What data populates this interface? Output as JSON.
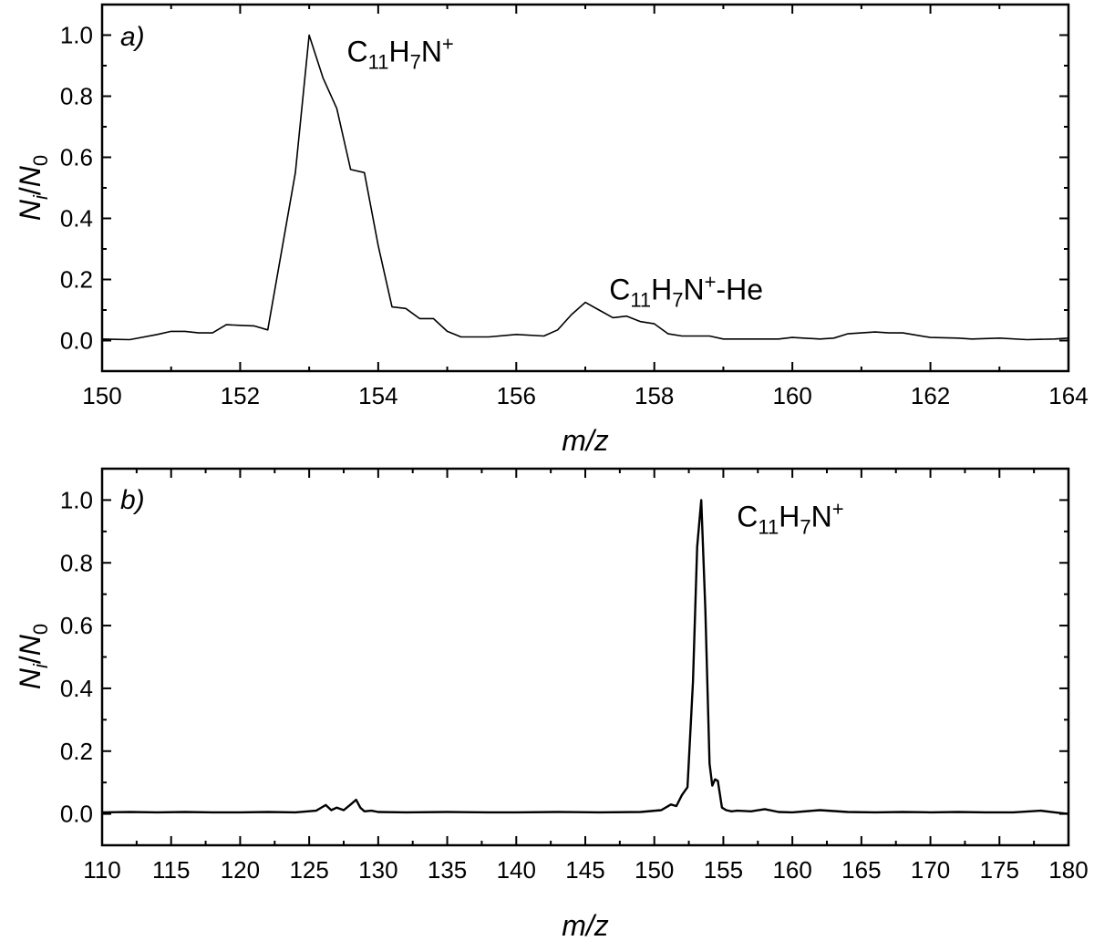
{
  "chart_data": [
    {
      "type": "line",
      "panel_label": "a)",
      "xlabel": "m/z",
      "ylabel": {
        "base": "N",
        "sub_i": "i",
        "slash": "/",
        "base2": "N",
        "sub_0": "0"
      },
      "xlim": [
        150,
        164
      ],
      "ylim": [
        -0.1,
        1.1
      ],
      "xticks": [
        "150",
        "152",
        "154",
        "156",
        "158",
        "160",
        "162",
        "164"
      ],
      "yticks": [
        "0.0",
        "0.2",
        "0.4",
        "0.6",
        "0.8",
        "1.0"
      ],
      "series": [
        {
          "x": [
            150.0,
            150.4,
            150.8,
            151.0,
            151.2,
            151.4,
            151.6,
            151.8,
            152.0,
            152.2,
            152.4,
            152.8,
            153.0,
            153.2,
            153.4,
            153.6,
            153.8,
            154.0,
            154.2,
            154.4,
            154.6,
            154.8,
            155.0,
            155.2,
            155.6,
            156.0,
            156.4,
            156.6,
            156.8,
            157.0,
            157.2,
            157.4,
            157.6,
            157.8,
            158.0,
            158.2,
            158.4,
            158.8,
            159.0,
            159.4,
            159.8,
            160.0,
            160.4,
            160.6,
            160.8,
            161.2,
            161.4,
            161.6,
            162.0,
            162.4,
            162.6,
            163.0,
            163.4,
            163.8,
            164.0
          ],
          "y": [
            0.005,
            0.003,
            0.02,
            0.03,
            0.03,
            0.025,
            0.025,
            0.052,
            0.05,
            0.048,
            0.035,
            0.55,
            1.0,
            0.86,
            0.76,
            0.56,
            0.55,
            0.31,
            0.11,
            0.105,
            0.072,
            0.072,
            0.03,
            0.012,
            0.012,
            0.02,
            0.015,
            0.035,
            0.085,
            0.125,
            0.1,
            0.075,
            0.08,
            0.062,
            0.055,
            0.022,
            0.015,
            0.015,
            0.005,
            0.005,
            0.005,
            0.01,
            0.005,
            0.008,
            0.022,
            0.028,
            0.025,
            0.025,
            0.01,
            0.008,
            0.005,
            0.008,
            0.003,
            0.005,
            0.008
          ]
        }
      ],
      "annotations": [
        {
          "x": 153.15,
          "y": 0.95,
          "base": "C",
          "sub1": "11",
          "mid": "H",
          "sub2": "7",
          "tail": "N",
          "sup": "+",
          "suffix": ""
        },
        {
          "x": 156.95,
          "y": 0.17,
          "base": "C",
          "sub1": "11",
          "mid": "H",
          "sub2": "7",
          "tail": "N",
          "sup": "+",
          "suffix": "-He"
        }
      ]
    },
    {
      "type": "line",
      "panel_label": "b)",
      "xlabel": "m/z",
      "ylabel": {
        "base": "N",
        "sub_i": "i",
        "slash": "/",
        "base2": "N",
        "sub_0": "0"
      },
      "xlim": [
        110,
        180
      ],
      "ylim": [
        -0.1,
        1.1
      ],
      "xticks": [
        "110",
        "115",
        "120",
        "125",
        "130",
        "135",
        "140",
        "145",
        "150",
        "155",
        "160",
        "165",
        "170",
        "175",
        "180"
      ],
      "yticks": [
        "0.0",
        "0.2",
        "0.4",
        "0.6",
        "0.8",
        "1.0"
      ],
      "series": [
        {
          "x": [
            110,
            112,
            114,
            116,
            118,
            120,
            122,
            124,
            125.5,
            126.2,
            126.6,
            127,
            127.5,
            128,
            128.4,
            128.7,
            129,
            129.5,
            130,
            132,
            135,
            138,
            140,
            143,
            146,
            149,
            150.5,
            151.2,
            151.6,
            152,
            152.4,
            152.8,
            153.1,
            153.4,
            153.7,
            154.0,
            154.2,
            154.4,
            154.6,
            154.9,
            155.2,
            155.6,
            156,
            157,
            158,
            159,
            160,
            162,
            164,
            166,
            168,
            170,
            172,
            174,
            176,
            178,
            179,
            180
          ],
          "y": [
            0.005,
            0.006,
            0.005,
            0.006,
            0.005,
            0.005,
            0.006,
            0.005,
            0.01,
            0.028,
            0.012,
            0.02,
            0.012,
            0.03,
            0.045,
            0.02,
            0.008,
            0.01,
            0.006,
            0.005,
            0.006,
            0.005,
            0.005,
            0.006,
            0.005,
            0.006,
            0.012,
            0.03,
            0.025,
            0.06,
            0.085,
            0.42,
            0.85,
            1.0,
            0.65,
            0.16,
            0.09,
            0.11,
            0.105,
            0.02,
            0.012,
            0.008,
            0.01,
            0.008,
            0.015,
            0.006,
            0.005,
            0.012,
            0.006,
            0.005,
            0.006,
            0.005,
            0.006,
            0.005,
            0.005,
            0.01,
            0.005,
            0.0
          ]
        }
      ],
      "annotations": [
        {
          "x": 154.0,
          "y": 0.95,
          "base": "C",
          "sub1": "11",
          "mid": "H",
          "sub2": "7",
          "tail": "N",
          "sup": "+",
          "suffix": ""
        }
      ]
    }
  ]
}
